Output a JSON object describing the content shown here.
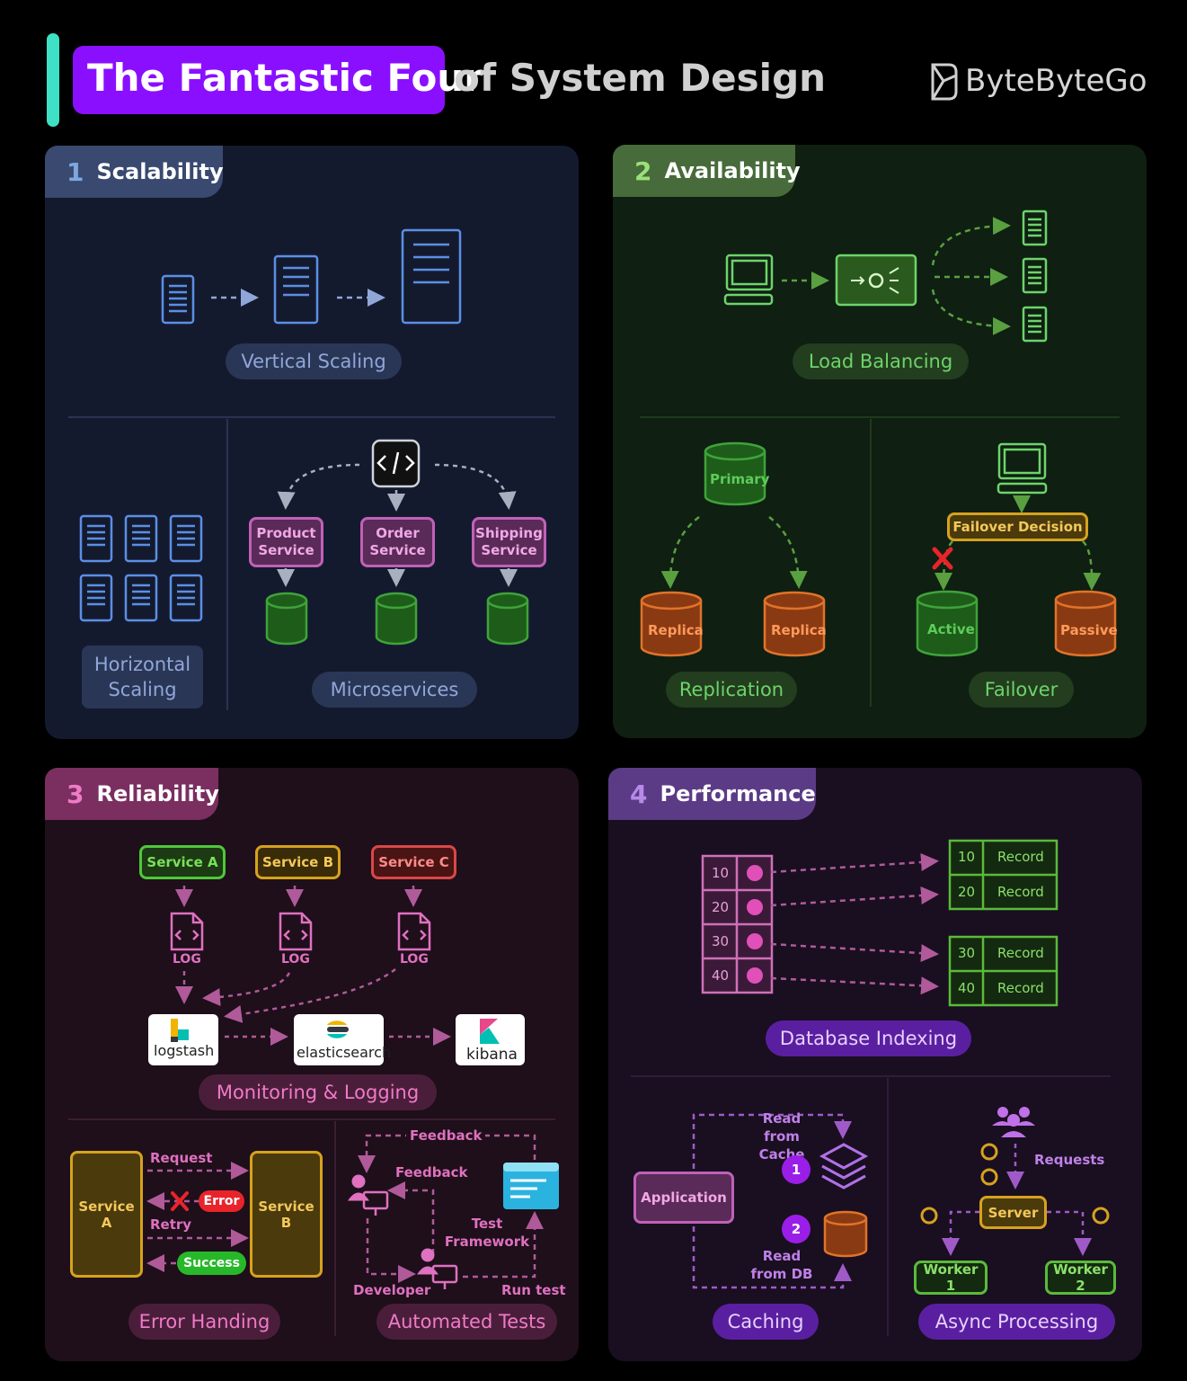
{
  "header": {
    "title_highlight": "The Fantastic Four",
    "title_rest": "of System Design",
    "brand": "ByteByteGo"
  },
  "colors": {
    "accent_bar": "#3ee0c6",
    "title_bg": "#8a0fff",
    "scalability_bg": "#141a2e",
    "availability_bg": "#0f1f12",
    "reliability_bg": "#1e0f1a",
    "performance_bg": "#190f20"
  },
  "scalability": {
    "number": "1",
    "title": "Scalability",
    "vertical_label": "Vertical Scaling",
    "horizontal_label": "Horizontal Scaling",
    "microservices_label": "Microservices",
    "services": [
      "Product Service",
      "Order Service",
      "Shipping Service"
    ]
  },
  "availability": {
    "number": "2",
    "title": "Availability",
    "load_balancing_label": "Load Balancing",
    "replication_label": "Replication",
    "failover_label": "Failover",
    "primary": "Primary",
    "replica_1": "Replica",
    "replica_2": "Replica",
    "failover_decision": "Failover Decision",
    "active": "Active",
    "passive": "Passive"
  },
  "reliability": {
    "number": "3",
    "title": "Reliability",
    "service_a": "Service A",
    "service_b": "Service B",
    "service_c": "Service C",
    "log": "LOG",
    "logstash": "logstash",
    "elasticsearch": "elasticsearch",
    "kibana": "kibana",
    "monitoring_label": "Monitoring & Logging",
    "eh_service_a": "Service A",
    "eh_service_b": "Service B",
    "request": "Request",
    "error": "Error",
    "retry": "Retry",
    "success": "Success",
    "error_handling_label": "Error Handing",
    "feedback_top": "Feedback",
    "feedback_mid": "Feedback",
    "test_framework": "Test Framework",
    "developer": "Developer",
    "run_test": "Run test",
    "automated_tests_label": "Automated Tests"
  },
  "performance": {
    "number": "4",
    "title": "Performance",
    "index_keys": [
      "10",
      "20",
      "30",
      "40"
    ],
    "records_a": [
      {
        "key": "10",
        "value": "Record"
      },
      {
        "key": "20",
        "value": "Record"
      }
    ],
    "records_b": [
      {
        "key": "30",
        "value": "Record"
      },
      {
        "key": "40",
        "value": "Record"
      }
    ],
    "db_indexing_label": "Database Indexing",
    "application": "Application",
    "read_from_cache": "Read from Cache",
    "read_from_db": "Read from DB",
    "step_1": "1",
    "step_2": "2",
    "caching_label": "Caching",
    "requests": "Requests",
    "server": "Server",
    "worker_1": "Worker 1",
    "worker_2": "Worker 2",
    "async_label": "Async Processing"
  }
}
